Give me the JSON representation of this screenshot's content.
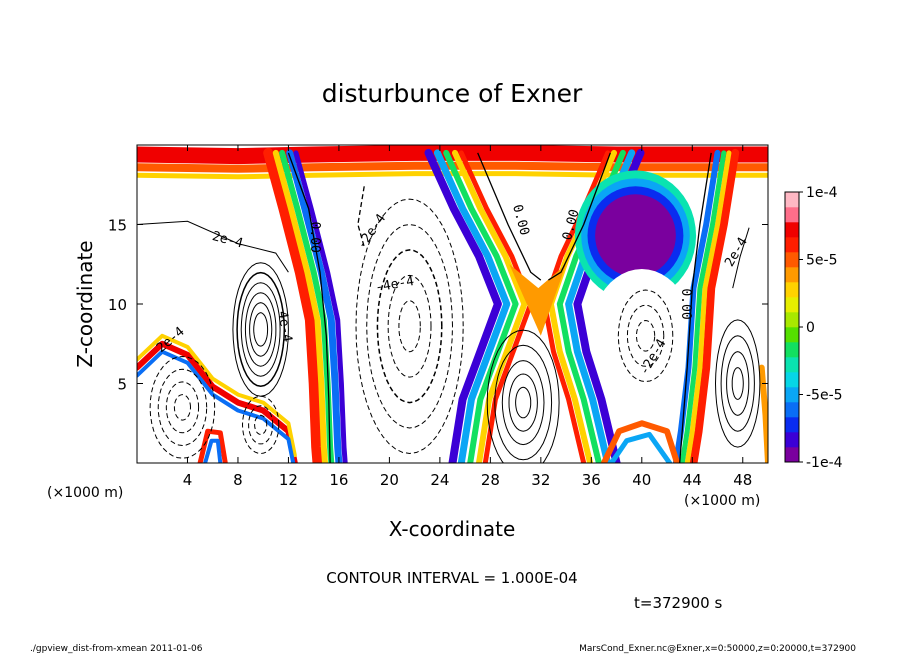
{
  "chart_data": {
    "type": "contour",
    "title": "disturbunce of Exner",
    "xlabel": "X-coordinate",
    "ylabel": "Z-coordinate",
    "x_unit": "(×1000 m)",
    "y_unit": "(×1000 m)",
    "xlim": [
      0,
      50
    ],
    "ylim": [
      0,
      20
    ],
    "x_ticks": [
      4,
      8,
      12,
      16,
      20,
      24,
      28,
      32,
      36,
      40,
      44,
      48
    ],
    "y_ticks": [
      5,
      10,
      15
    ],
    "x_tick_labels": [
      "4",
      "8",
      "12",
      "16",
      "20",
      "24",
      "28",
      "32",
      "36",
      "40",
      "44",
      "48"
    ],
    "y_tick_labels": [
      "5",
      "10",
      "15"
    ],
    "contour_interval_text": "CONTOUR INTERVAL = 1.000E-04",
    "time_text": "t=372900 s",
    "colorbar": {
      "min": -0.0001,
      "max": 0.0001,
      "tick_labels": [
        "1e-4",
        "5e-5",
        "0",
        "-5e-5",
        "-1e-4"
      ],
      "tick_values": [
        0.0001,
        5e-05,
        0,
        -5e-05,
        -0.0001
      ],
      "colors": [
        "#7a009e",
        "#3b00d6",
        "#0a2cf0",
        "#0a6ef5",
        "#0aa6f5",
        "#06d6e6",
        "#0ae3b0",
        "#12e060",
        "#55e000",
        "#a8e800",
        "#e6ee00",
        "#ffd200",
        "#ff9a00",
        "#ff5a00",
        "#ff1e00",
        "#f00000",
        "#ff6e8a",
        "#ffb8c4"
      ]
    },
    "contour_labels": [
      {
        "text": "2e-4",
        "x": 7.2,
        "z": 14.1,
        "rot": 15
      },
      {
        "text": "2e-4",
        "x": 2.6,
        "z": 7.8,
        "rot": -40
      },
      {
        "text": "4e-4",
        "x": 11.8,
        "z": 8.6,
        "rot": 80
      },
      {
        "text": "0.00",
        "x": 14.2,
        "z": 14.2,
        "rot": 90
      },
      {
        "text": "-2e-4",
        "x": 18.5,
        "z": 14.6,
        "rot": -55
      },
      {
        "text": "-4e-4",
        "x": 20.4,
        "z": 11.3,
        "rot": -10
      },
      {
        "text": "0.00",
        "x": 30.5,
        "z": 15.3,
        "rot": 75
      },
      {
        "text": "0.00",
        "x": 34.3,
        "z": 15.0,
        "rot": -75
      },
      {
        "text": "-2e-4",
        "x": 40.8,
        "z": 6.7,
        "rot": -60
      },
      {
        "text": "0.00",
        "x": 43.6,
        "z": 10.0,
        "rot": 90
      },
      {
        "text": "2e-4",
        "x": 47.4,
        "z": 13.3,
        "rot": -60
      }
    ]
  },
  "footer": {
    "left": "./gpview_dist-from-xmean  2011-01-06",
    "right": "MarsCond_Exner.nc@Exner,x=0:50000,z=0:20000,t=372900"
  }
}
